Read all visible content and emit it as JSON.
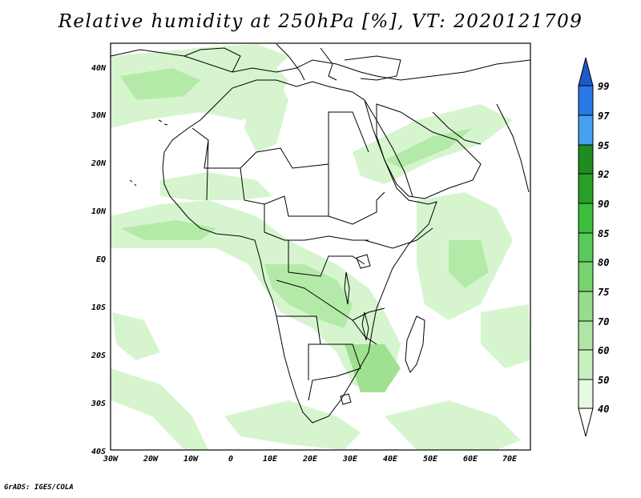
{
  "title": "Relative humidity at 250hPa [%], VT: 2020121709",
  "credit": "GrADS: IGES/COLA",
  "map": {
    "lon_range": [
      -30,
      75
    ],
    "lat_range": [
      -40,
      45
    ],
    "lon_ticks": [
      "30W",
      "20W",
      "10W",
      "0",
      "10E",
      "20E",
      "30E",
      "40E",
      "50E",
      "60E",
      "70E"
    ],
    "lat_ticks": [
      "40N",
      "30N",
      "20N",
      "10N",
      "EQ",
      "10S",
      "20S",
      "30S",
      "40S"
    ],
    "boundaries": "coastlines and country borders (Africa, Europe, Middle East)"
  },
  "colorbar": {
    "labels": [
      "40",
      "50",
      "60",
      "70",
      "75",
      "80",
      "85",
      "90",
      "92",
      "95",
      "97",
      "99"
    ],
    "colors": [
      "#ffffff",
      "#e6fae1",
      "#c8f0be",
      "#afe6a5",
      "#96dc8c",
      "#78d26e",
      "#5ac85a",
      "#3cbe3c",
      "#28a028",
      "#1e8c1e",
      "#46a0f0",
      "#2878e6",
      "#1e5ac8"
    ]
  },
  "field_colors": {
    "light": "#d6f5cf",
    "medium": "#b4eaa8",
    "strong": "#9fe191"
  }
}
